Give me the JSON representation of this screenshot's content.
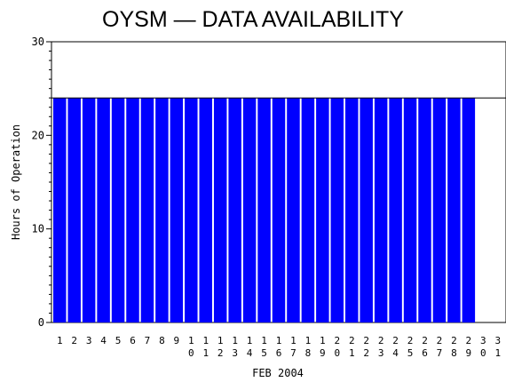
{
  "chart_data": {
    "type": "bar",
    "title": "OYSM — DATA AVAILABILITY",
    "xlabel": "FEB 2004",
    "ylabel": "Hours of Operation",
    "ylim": [
      0,
      30
    ],
    "yticks": [
      0,
      10,
      20,
      30
    ],
    "grid": false,
    "bar_color": "#0000ff",
    "reference_line": 24,
    "categories": [
      "1",
      "2",
      "3",
      "4",
      "5",
      "6",
      "7",
      "8",
      "9",
      "10",
      "11",
      "12",
      "13",
      "14",
      "15",
      "16",
      "17",
      "18",
      "19",
      "20",
      "21",
      "22",
      "23",
      "24",
      "25",
      "26",
      "27",
      "28",
      "29",
      "30",
      "31"
    ],
    "values": [
      24,
      24,
      24,
      24,
      24,
      24,
      24,
      24,
      24,
      24,
      24,
      24,
      24,
      24,
      24,
      24,
      24,
      24,
      24,
      24,
      24,
      24,
      24,
      24,
      24,
      24,
      24,
      24,
      24,
      0,
      0
    ]
  }
}
